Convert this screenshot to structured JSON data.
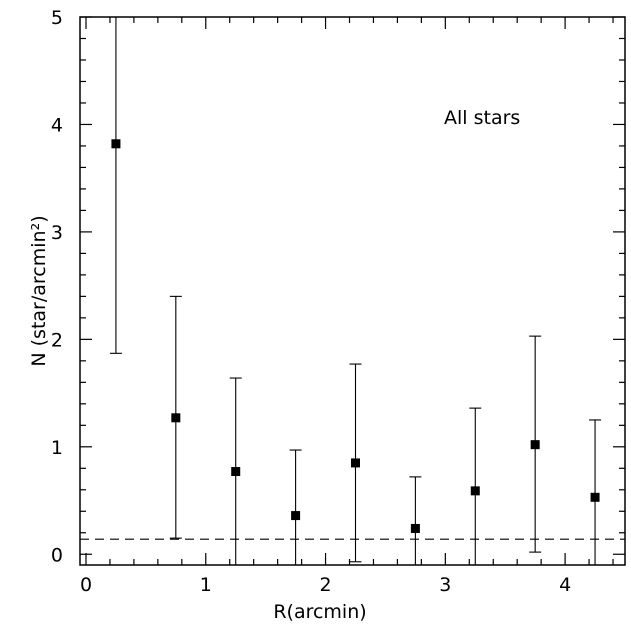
{
  "chart_data": {
    "type": "scatter",
    "title": "",
    "xlabel": "R(arcmin)",
    "ylabel": "N (star/arcmin²)",
    "xlim": [
      -0.05,
      4.5
    ],
    "ylim": [
      -0.1,
      5.0
    ],
    "x_ticks": [
      "0",
      "1",
      "2",
      "3",
      "4"
    ],
    "y_ticks": [
      "0",
      "1",
      "2",
      "3",
      "4",
      "5"
    ],
    "annotation": "All stars",
    "background_level": 0.14,
    "grid": false,
    "points": [
      {
        "x": 0.25,
        "y": 3.82,
        "err_low": 1.87,
        "err_high": 5.0
      },
      {
        "x": 0.75,
        "y": 1.27,
        "err_low": 0.15,
        "err_high": 2.4
      },
      {
        "x": 1.25,
        "y": 0.77,
        "err_low": -0.1,
        "err_high": 1.64
      },
      {
        "x": 1.75,
        "y": 0.36,
        "err_low": -0.1,
        "err_high": 0.97
      },
      {
        "x": 2.25,
        "y": 0.85,
        "err_low": -0.07,
        "err_high": 1.77
      },
      {
        "x": 2.75,
        "y": 0.24,
        "err_low": -0.1,
        "err_high": 0.72
      },
      {
        "x": 3.25,
        "y": 0.59,
        "err_low": -0.1,
        "err_high": 1.36
      },
      {
        "x": 3.75,
        "y": 1.02,
        "err_low": 0.02,
        "err_high": 2.03
      },
      {
        "x": 4.25,
        "y": 0.53,
        "err_low": -0.1,
        "err_high": 1.25
      }
    ]
  }
}
